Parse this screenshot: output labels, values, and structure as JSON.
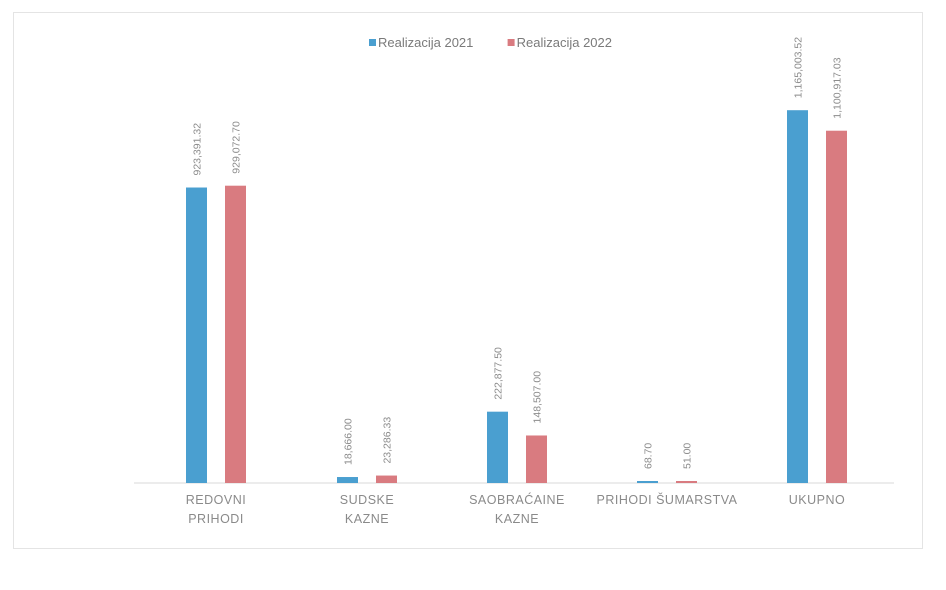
{
  "chart_data": {
    "type": "bar",
    "title": "",
    "xlabel": "",
    "ylabel": "",
    "ylim": [
      0,
      1250000
    ],
    "grid": false,
    "legend_position": "top",
    "categories": [
      [
        "REDOVNI",
        "PRIHODI"
      ],
      [
        "SUDSKE",
        "KAZNE"
      ],
      [
        "SAOBRAĆAINE",
        "KAZNE"
      ],
      [
        "PRIHODI ŠUMARSTVA"
      ],
      [
        "UKUPNO"
      ]
    ],
    "series": [
      {
        "name": "Realizacija 2021",
        "color": "#4a9fd0",
        "values": [
          923391.32,
          18666.0,
          222877.5,
          68.7,
          1165003.52
        ],
        "labels": [
          "923,391.32",
          "18,666.00",
          "222,877.50",
          "68.70",
          "1,165,003.52"
        ]
      },
      {
        "name": "Realizacija 2022",
        "color": "#d97b80",
        "values": [
          929072.7,
          23286.33,
          148507.0,
          51.0,
          1100917.03
        ],
        "labels": [
          "929,072.70",
          "23,286.33",
          "148,507.00",
          "51.00",
          "1,100,917.03"
        ]
      }
    ]
  }
}
